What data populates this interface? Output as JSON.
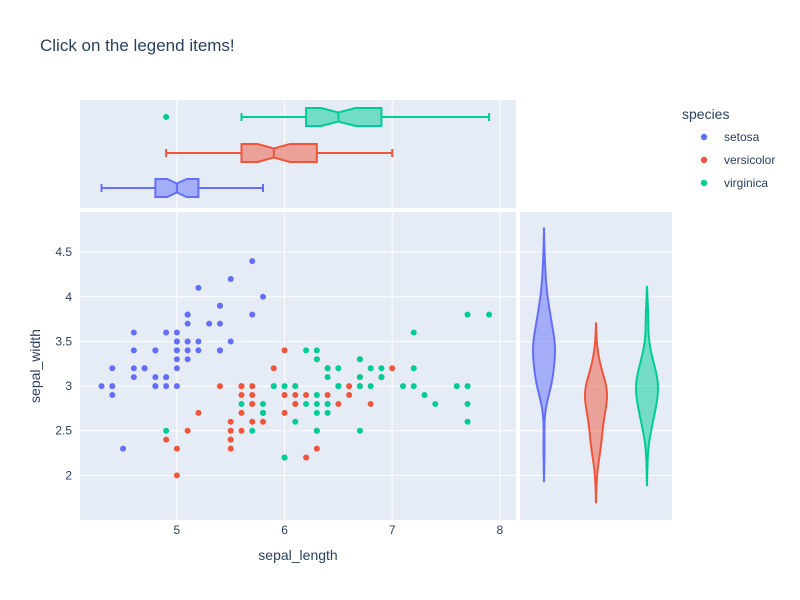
{
  "title": "Click on the legend items!",
  "legend_title": "species",
  "chart_data": {
    "type": "scatter",
    "title": "Click on the legend items!",
    "xlabel": "sepal_length",
    "ylabel": "sepal_width",
    "xlim": [
      4.1,
      8.15
    ],
    "ylim": [
      1.5,
      4.95
    ],
    "x_ticks": [
      "5",
      "6",
      "7",
      "8"
    ],
    "y_ticks": [
      "2",
      "2.5",
      "3",
      "3.5",
      "4",
      "4.5"
    ],
    "legend_position": "top-right",
    "grid": true,
    "marginal_x": "box",
    "marginal_y": "violin",
    "series": [
      {
        "name": "setosa",
        "color": "#636efa",
        "points": [
          [
            5.1,
            3.5
          ],
          [
            4.9,
            3.0
          ],
          [
            4.7,
            3.2
          ],
          [
            4.6,
            3.1
          ],
          [
            5.0,
            3.6
          ],
          [
            5.4,
            3.9
          ],
          [
            4.6,
            3.4
          ],
          [
            5.0,
            3.4
          ],
          [
            4.4,
            2.9
          ],
          [
            4.9,
            3.1
          ],
          [
            5.4,
            3.7
          ],
          [
            4.8,
            3.4
          ],
          [
            4.8,
            3.0
          ],
          [
            4.3,
            3.0
          ],
          [
            5.8,
            4.0
          ],
          [
            5.7,
            4.4
          ],
          [
            5.4,
            3.9
          ],
          [
            5.1,
            3.5
          ],
          [
            5.7,
            3.8
          ],
          [
            5.1,
            3.8
          ],
          [
            5.4,
            3.4
          ],
          [
            5.1,
            3.7
          ],
          [
            4.6,
            3.6
          ],
          [
            5.1,
            3.3
          ],
          [
            4.8,
            3.4
          ],
          [
            5.0,
            3.0
          ],
          [
            5.0,
            3.4
          ],
          [
            5.2,
            3.5
          ],
          [
            5.2,
            3.4
          ],
          [
            4.7,
            3.2
          ],
          [
            4.8,
            3.1
          ],
          [
            5.4,
            3.4
          ],
          [
            5.2,
            4.1
          ],
          [
            5.5,
            4.2
          ],
          [
            4.9,
            3.1
          ],
          [
            5.0,
            3.2
          ],
          [
            5.5,
            3.5
          ],
          [
            4.9,
            3.6
          ],
          [
            4.4,
            3.0
          ],
          [
            5.1,
            3.4
          ],
          [
            5.0,
            3.5
          ],
          [
            4.5,
            2.3
          ],
          [
            4.4,
            3.2
          ],
          [
            5.0,
            3.5
          ],
          [
            5.1,
            3.8
          ],
          [
            4.8,
            3.0
          ],
          [
            5.1,
            3.8
          ],
          [
            4.6,
            3.2
          ],
          [
            5.3,
            3.7
          ],
          [
            5.0,
            3.3
          ]
        ],
        "box": {
          "min": 4.3,
          "q1": 4.8,
          "median": 5.0,
          "q3": 5.2,
          "max": 5.8,
          "notch_low": 4.91,
          "notch_high": 5.09
        }
      },
      {
        "name": "versicolor",
        "color": "#ef553b",
        "points": [
          [
            7.0,
            3.2
          ],
          [
            6.4,
            3.2
          ],
          [
            6.9,
            3.1
          ],
          [
            5.5,
            2.3
          ],
          [
            6.5,
            2.8
          ],
          [
            5.7,
            2.8
          ],
          [
            6.3,
            3.3
          ],
          [
            4.9,
            2.4
          ],
          [
            6.6,
            2.9
          ],
          [
            5.2,
            2.7
          ],
          [
            5.0,
            2.0
          ],
          [
            5.9,
            3.0
          ],
          [
            6.0,
            2.2
          ],
          [
            6.1,
            2.9
          ],
          [
            5.6,
            2.9
          ],
          [
            6.7,
            3.1
          ],
          [
            5.6,
            3.0
          ],
          [
            5.8,
            2.7
          ],
          [
            6.2,
            2.2
          ],
          [
            5.6,
            2.5
          ],
          [
            5.9,
            3.2
          ],
          [
            6.1,
            2.8
          ],
          [
            6.3,
            2.5
          ],
          [
            6.1,
            2.8
          ],
          [
            6.4,
            2.9
          ],
          [
            6.6,
            3.0
          ],
          [
            6.8,
            2.8
          ],
          [
            6.7,
            3.0
          ],
          [
            6.0,
            2.9
          ],
          [
            5.7,
            2.6
          ],
          [
            5.5,
            2.4
          ],
          [
            5.5,
            2.4
          ],
          [
            5.8,
            2.7
          ],
          [
            6.0,
            2.7
          ],
          [
            5.4,
            3.0
          ],
          [
            6.0,
            3.4
          ],
          [
            6.7,
            3.1
          ],
          [
            6.3,
            2.3
          ],
          [
            5.6,
            3.0
          ],
          [
            5.5,
            2.5
          ],
          [
            5.5,
            2.6
          ],
          [
            6.1,
            3.0
          ],
          [
            5.8,
            2.6
          ],
          [
            5.0,
            2.3
          ],
          [
            5.6,
            2.7
          ],
          [
            5.7,
            3.0
          ],
          [
            5.7,
            2.9
          ],
          [
            6.2,
            2.9
          ],
          [
            5.1,
            2.5
          ],
          [
            5.7,
            2.8
          ]
        ],
        "box": {
          "min": 4.9,
          "q1": 5.6,
          "median": 5.9,
          "q3": 6.3,
          "max": 7.0,
          "notch_low": 5.75,
          "notch_high": 6.05
        }
      },
      {
        "name": "virginica",
        "color": "#00cc96",
        "points": [
          [
            6.3,
            3.3
          ],
          [
            5.8,
            2.7
          ],
          [
            7.1,
            3.0
          ],
          [
            6.3,
            2.9
          ],
          [
            6.5,
            3.0
          ],
          [
            7.6,
            3.0
          ],
          [
            4.9,
            2.5
          ],
          [
            7.3,
            2.9
          ],
          [
            6.7,
            2.5
          ],
          [
            7.2,
            3.6
          ],
          [
            6.5,
            3.2
          ],
          [
            6.4,
            2.7
          ],
          [
            6.8,
            3.0
          ],
          [
            5.7,
            2.5
          ],
          [
            5.8,
            2.8
          ],
          [
            6.4,
            3.2
          ],
          [
            6.5,
            3.0
          ],
          [
            7.7,
            3.8
          ],
          [
            7.7,
            2.6
          ],
          [
            6.0,
            2.2
          ],
          [
            6.9,
            3.2
          ],
          [
            5.6,
            2.8
          ],
          [
            7.7,
            2.8
          ],
          [
            6.3,
            2.7
          ],
          [
            6.7,
            3.3
          ],
          [
            7.2,
            3.2
          ],
          [
            6.2,
            2.8
          ],
          [
            6.1,
            3.0
          ],
          [
            6.4,
            2.8
          ],
          [
            7.2,
            3.0
          ],
          [
            7.4,
            2.8
          ],
          [
            7.9,
            3.8
          ],
          [
            6.4,
            2.8
          ],
          [
            6.3,
            2.8
          ],
          [
            6.1,
            2.6
          ],
          [
            7.7,
            3.0
          ],
          [
            6.3,
            3.4
          ],
          [
            6.4,
            3.1
          ],
          [
            6.0,
            3.0
          ],
          [
            6.9,
            3.1
          ],
          [
            6.7,
            3.1
          ],
          [
            6.9,
            3.1
          ],
          [
            5.8,
            2.7
          ],
          [
            6.8,
            3.2
          ],
          [
            6.7,
            3.3
          ],
          [
            6.7,
            3.0
          ],
          [
            6.3,
            2.5
          ],
          [
            6.5,
            3.0
          ],
          [
            6.2,
            3.4
          ],
          [
            5.9,
            3.0
          ]
        ],
        "box": {
          "min": 5.6,
          "q1": 6.2,
          "median": 6.5,
          "q3": 6.9,
          "max": 7.9,
          "notch_low": 6.34,
          "notch_high": 6.66,
          "outliers": [
            4.9
          ]
        }
      }
    ]
  }
}
